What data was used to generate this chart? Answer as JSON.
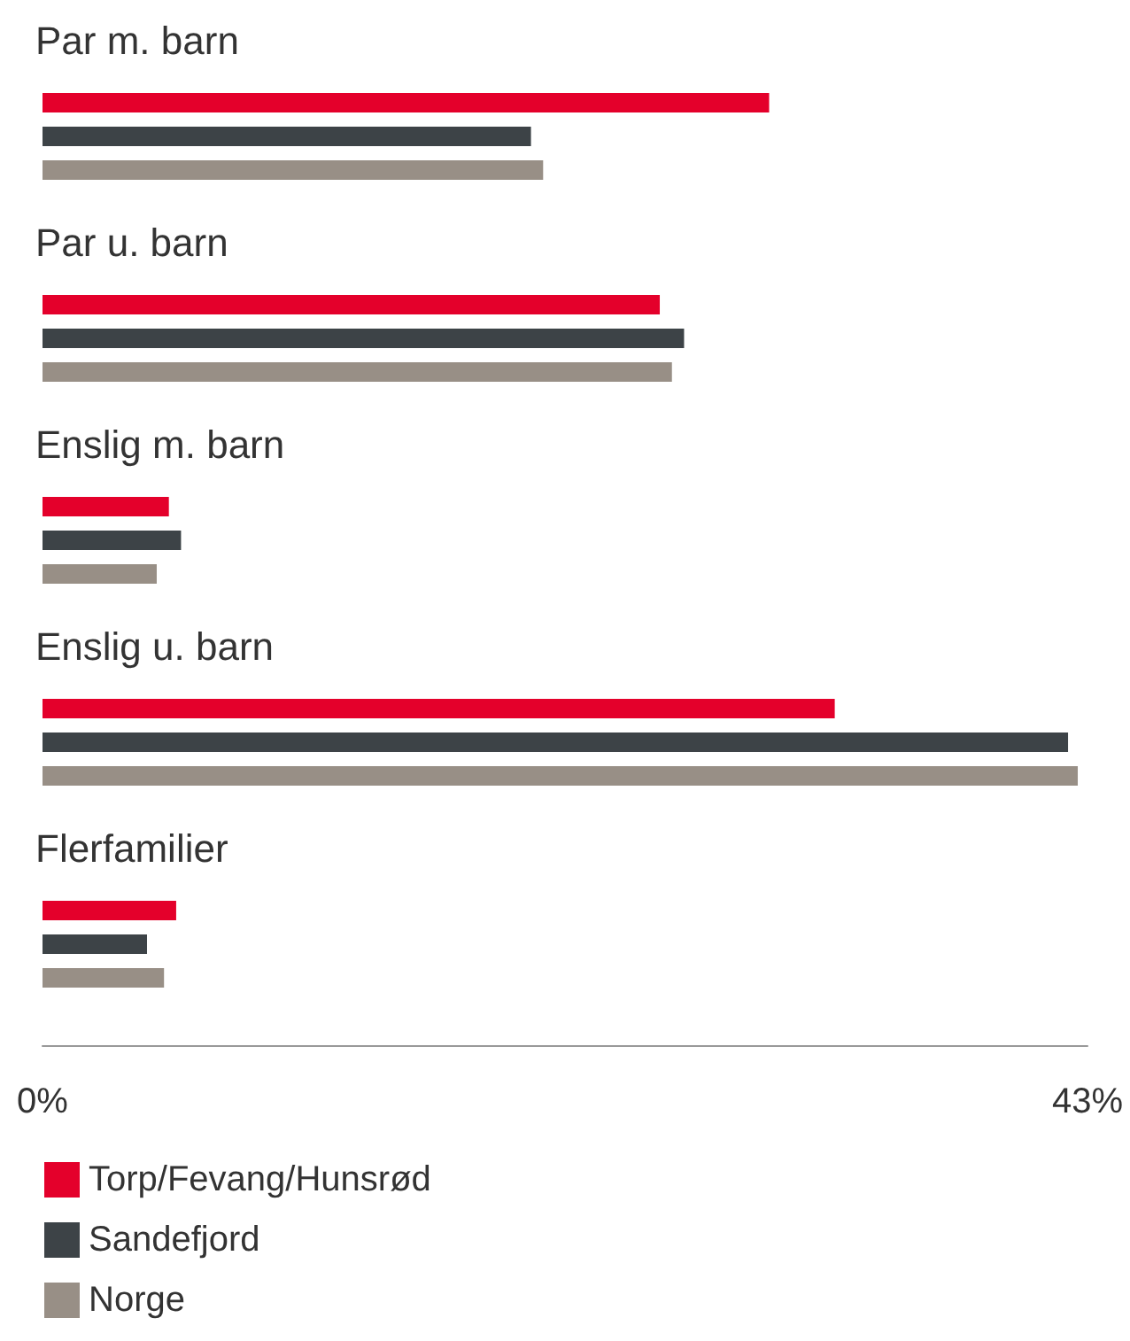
{
  "chart_data": {
    "type": "bar",
    "orientation": "horizontal",
    "categories": [
      "Par m. barn",
      "Par u. barn",
      "Enslig m. barn",
      "Enslig u. barn",
      "Flerfamilier"
    ],
    "series": [
      {
        "name": "Torp/Fevang/Hunsrød",
        "color": "#e4002b",
        "values": [
          29.9,
          25.4,
          5.2,
          32.6,
          5.5
        ]
      },
      {
        "name": "Sandefjord",
        "color": "#3d4347",
        "values": [
          20.1,
          26.4,
          5.7,
          42.2,
          4.3
        ]
      },
      {
        "name": "Norge",
        "color": "#988f86",
        "values": [
          20.6,
          25.9,
          4.7,
          42.6,
          5.0
        ]
      }
    ],
    "xlim": [
      0,
      43
    ],
    "xticks": [
      {
        "value": 0,
        "label": "0%"
      },
      {
        "value": 43,
        "label": "43%"
      }
    ],
    "legend": "bottom left"
  }
}
